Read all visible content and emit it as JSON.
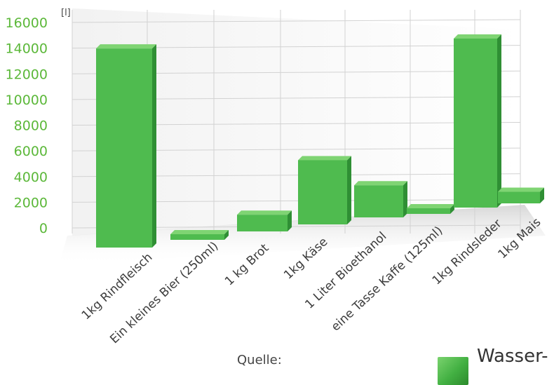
{
  "chart_data": {
    "type": "bar",
    "unit_label": "[l]",
    "yticks": [
      "16000",
      "14000",
      "12000",
      "10000",
      "8000",
      "6000",
      "4000",
      "2000",
      "0"
    ],
    "ylim": [
      0,
      16000
    ],
    "categories": [
      "1kg Rindfleisch",
      "Ein kleines Bier (250ml)",
      "1 kg Brot",
      "1kg Käse",
      "1 Liter Bioethanol",
      "eine Tasse Kaffe (125ml)",
      "1kg Rindsleder",
      "1kg Mais"
    ],
    "values": [
      15500,
      75,
      1300,
      5000,
      2500,
      140,
      16600,
      900
    ],
    "grid": true,
    "legend_position": "bottom-right"
  },
  "colors": {
    "bar_front": "#4fbb4f",
    "bar_top": "#7fd473",
    "bar_side": "#2f8f34",
    "tick_text": "#5cb83a",
    "grid": "#d2d2d2"
  },
  "source_label": "Quelle:",
  "legend_label": "Wasser-"
}
